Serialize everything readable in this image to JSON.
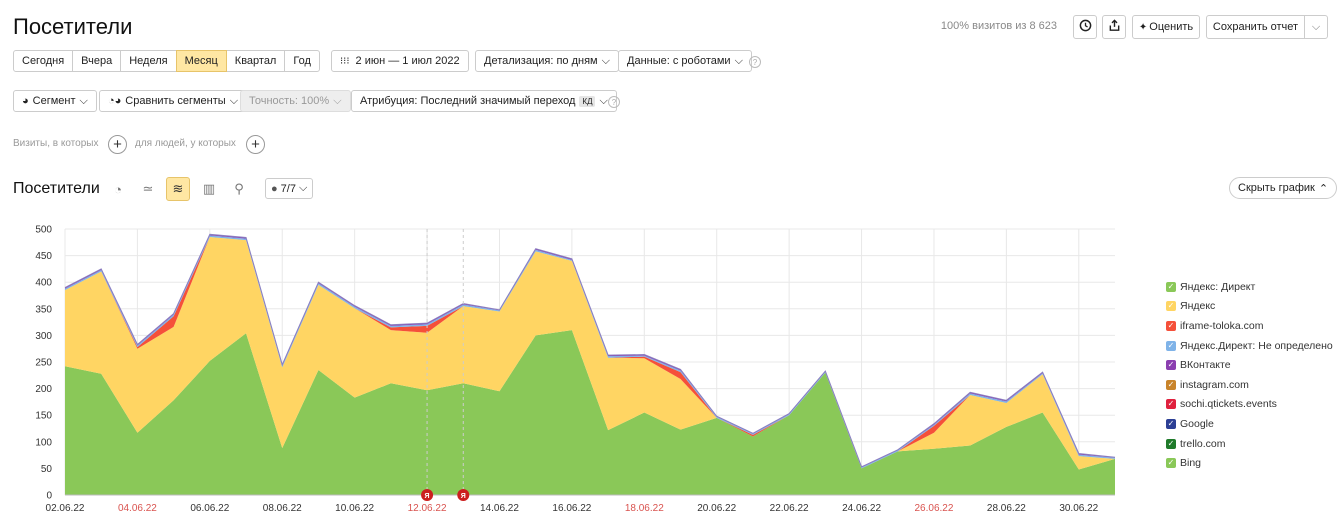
{
  "header": {
    "title": "Посетители",
    "visits_note": "100% визитов из 8 623",
    "rate_label": "Оценить",
    "save_label": "Сохранить отчет"
  },
  "periods": [
    "Сегодня",
    "Вчера",
    "Неделя",
    "Месяц",
    "Квартал",
    "Год"
  ],
  "active_period": "Месяц",
  "date_range": "2 июн — 1 июл 2022",
  "detail_label": "Детализация: по дням",
  "data_label": "Данные: с роботами",
  "segment_label": "Сегмент",
  "compare_label": "Сравнить сегменты",
  "accuracy_label": "Точность: 100%",
  "attribution_label": "Атрибуция: Последний значимый переход",
  "attribution_badge": "КД",
  "filter": {
    "visits_text": "Визиты, в которых",
    "people_text": "для людей, у которых"
  },
  "chart_header": {
    "title": "Посетители",
    "series_count": "7/7",
    "hide_label": "Скрыть график"
  },
  "colors": {
    "direct": "#8ac858",
    "yandex": "#ffd563",
    "toloka": "#f5503a",
    "direct_undef": "#7fb3e8",
    "vk": "#8b3fb0",
    "instagram": "#c9842b",
    "qtickets": "#e0213e",
    "google": "#2c3f94",
    "trello": "#1f7a2a",
    "bing": "#8ac858",
    "accent": "#ffe7a3",
    "weekend": "#d9534f",
    "marker": "#cc1f1f"
  },
  "chart_data": {
    "type": "area",
    "stacked": true,
    "xlabel": "",
    "ylabel": "",
    "ylim": [
      0,
      500
    ],
    "yticks": [
      0,
      50,
      100,
      150,
      200,
      250,
      300,
      350,
      400,
      450,
      500
    ],
    "grid": true,
    "legend_position": "right",
    "x": [
      "02.06.22",
      "03.06.22",
      "04.06.22",
      "05.06.22",
      "06.06.22",
      "07.06.22",
      "08.06.22",
      "09.06.22",
      "10.06.22",
      "11.06.22",
      "12.06.22",
      "13.06.22",
      "14.06.22",
      "15.06.22",
      "16.06.22",
      "17.06.22",
      "18.06.22",
      "19.06.22",
      "20.06.22",
      "21.06.22",
      "22.06.22",
      "23.06.22",
      "24.06.22",
      "25.06.22",
      "26.06.22",
      "27.06.22",
      "28.06.22",
      "29.06.22",
      "30.06.22",
      "01.07.22"
    ],
    "xtick_labels": [
      "02.06.22",
      "04.06.22",
      "06.06.22",
      "08.06.22",
      "10.06.22",
      "12.06.22",
      "14.06.22",
      "16.06.22",
      "18.06.22",
      "20.06.22",
      "22.06.22",
      "24.06.22",
      "26.06.22",
      "28.06.22",
      "30.06.22"
    ],
    "weekend_ticks": [
      "04.06.22",
      "12.06.22",
      "18.06.22",
      "26.06.22"
    ],
    "markers": [
      {
        "x": "12.06.22",
        "label": "Я"
      },
      {
        "x": "13.06.22",
        "label": "Я"
      }
    ],
    "series": [
      {
        "name": "Яндекс: Директ",
        "key": "direct",
        "values": [
          242,
          228,
          117,
          178,
          252,
          304,
          88,
          235,
          183,
          210,
          197,
          210,
          195,
          300,
          310,
          122,
          155,
          123,
          145,
          110,
          150,
          230,
          50,
          82,
          87,
          93,
          128,
          155,
          48,
          68
        ]
      },
      {
        "name": "Яндекс",
        "key": "yandex",
        "values": [
          143,
          192,
          158,
          138,
          233,
          175,
          152,
          160,
          168,
          100,
          108,
          145,
          150,
          158,
          130,
          136,
          102,
          95,
          0,
          0,
          0,
          0,
          0,
          0,
          30,
          95,
          45,
          72,
          25,
          0
        ]
      },
      {
        "name": "iframe-toloka.com",
        "key": "toloka",
        "values": [
          0,
          0,
          3,
          20,
          0,
          0,
          0,
          0,
          0,
          5,
          13,
          0,
          0,
          0,
          0,
          0,
          3,
          13,
          0,
          3,
          0,
          0,
          0,
          0,
          13,
          0,
          0,
          0,
          0,
          0
        ]
      },
      {
        "name": "Яндекс.Директ: Не определено",
        "key": "direct_undef",
        "values": [
          3,
          3,
          3,
          3,
          3,
          3,
          3,
          3,
          3,
          3,
          3,
          3,
          2,
          3,
          2,
          3,
          2,
          3,
          2,
          2,
          2,
          2,
          2,
          2,
          2,
          3,
          3,
          2,
          3,
          2
        ]
      },
      {
        "name": "ВКонтакте",
        "key": "vk",
        "values": [
          2,
          2,
          2,
          2,
          2,
          2,
          2,
          2,
          2,
          2,
          2,
          2,
          1,
          2,
          2,
          2,
          2,
          2,
          1,
          1,
          1,
          1,
          1,
          1,
          2,
          2,
          2,
          2,
          2,
          1
        ]
      },
      {
        "name": "instagram.com",
        "key": "instagram",
        "values": [
          0,
          0,
          0,
          0,
          0,
          0,
          0,
          0,
          0,
          0,
          0,
          0,
          0,
          0,
          0,
          0,
          0,
          0,
          0,
          0,
          0,
          0,
          0,
          0,
          0,
          0,
          0,
          0,
          0,
          0
        ]
      },
      {
        "name": "sochi.qtickets.events",
        "key": "qtickets",
        "values": [
          0,
          0,
          0,
          0,
          0,
          0,
          0,
          0,
          0,
          0,
          0,
          0,
          0,
          0,
          0,
          0,
          0,
          0,
          0,
          0,
          0,
          0,
          0,
          0,
          0,
          0,
          0,
          0,
          0,
          0
        ]
      },
      {
        "name": "Google",
        "key": "google",
        "values": [
          0,
          0,
          0,
          0,
          0,
          0,
          0,
          0,
          0,
          0,
          0,
          0,
          0,
          0,
          0,
          0,
          0,
          0,
          0,
          0,
          0,
          0,
          0,
          0,
          0,
          0,
          0,
          0,
          0,
          0
        ]
      },
      {
        "name": "trello.com",
        "key": "trello",
        "values": [
          0,
          0,
          0,
          0,
          0,
          0,
          0,
          0,
          0,
          0,
          0,
          0,
          0,
          0,
          0,
          0,
          0,
          0,
          0,
          0,
          0,
          0,
          0,
          0,
          0,
          0,
          0,
          0,
          0,
          0
        ]
      },
      {
        "name": "Bing",
        "key": "bing",
        "values": [
          0,
          0,
          0,
          0,
          0,
          0,
          0,
          0,
          0,
          0,
          0,
          0,
          0,
          0,
          0,
          0,
          0,
          0,
          0,
          0,
          0,
          0,
          0,
          0,
          0,
          0,
          0,
          0,
          0,
          0
        ]
      }
    ]
  }
}
